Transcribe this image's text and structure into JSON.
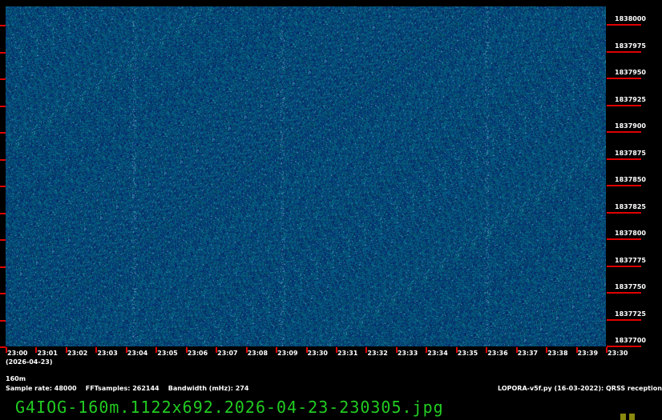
{
  "spectrogram": {
    "colors": {
      "base": "#0a2a78",
      "green": "#1a6a5a",
      "bright": "#5aa0c0",
      "tick": "#e00000"
    }
  },
  "freq_labels": [
    "1838000",
    "1837975",
    "1837950",
    "1837925",
    "1837900",
    "1837875",
    "1837850",
    "1837825",
    "1837800",
    "1837775",
    "1837750",
    "1837725",
    "1837700"
  ],
  "time_labels": [
    "23:00",
    "23:01",
    "23:02",
    "23:03",
    "23:04",
    "23:05",
    "23:06",
    "23:07",
    "23:08",
    "23:09",
    "23:30",
    "23:31",
    "23:32",
    "23:33",
    "23:34",
    "23:35",
    "23:36",
    "23:37",
    "23:38",
    "23:39",
    "23:30"
  ],
  "date": "(2026-04-23)",
  "band": "160m",
  "params": "Sample rate: 48000    FFTsamples: 262144    Bandwidth (mHz): 274",
  "software": "LOPORA-v5f.py (16-03-2022): QRSS reception",
  "filename": "G4IOG-160m.1122x692.2026-04-23-230305.jpg"
}
